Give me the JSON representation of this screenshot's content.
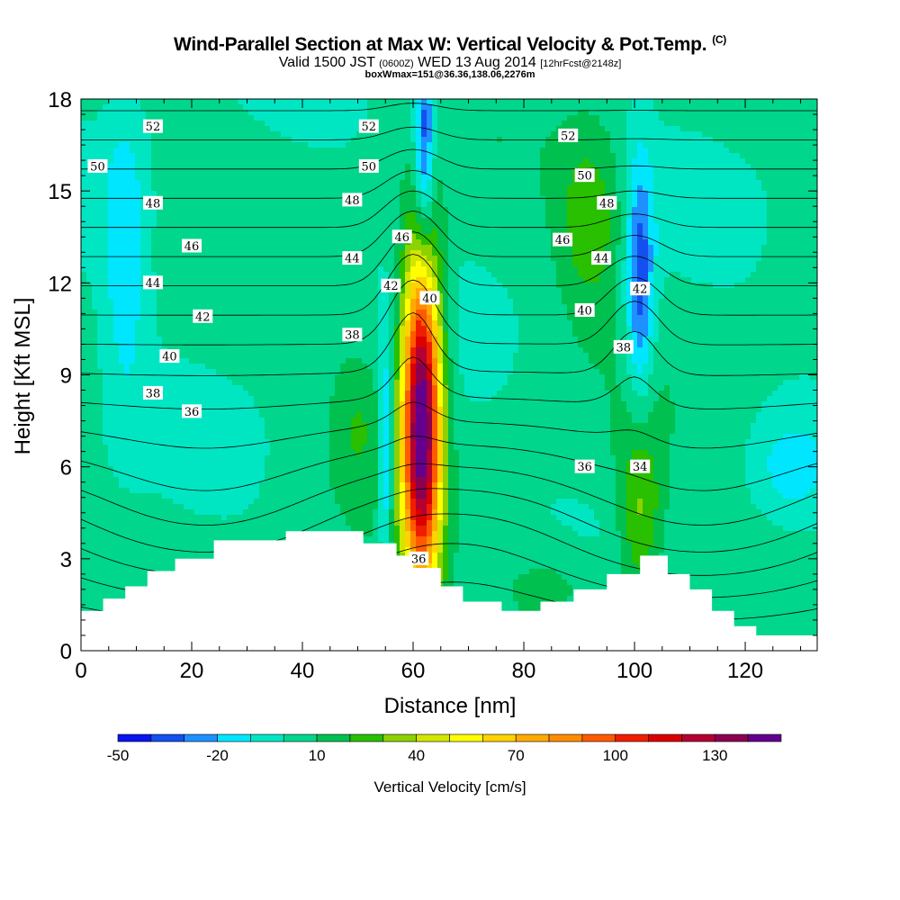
{
  "chart_data": {
    "type": "heatmap",
    "title": "Wind-Parallel Section at Max W: Vertical Velocity & Pot.Temp.",
    "title_unit": "(C)",
    "subtitle_main_a": "Valid 1500 JST",
    "subtitle_small_a": "(0600Z)",
    "subtitle_main_b": "WED 13 Aug 2014",
    "subtitle_small_b": "[12hrFcst@2148z]",
    "subtitle2": "boxWmax=151@36.36,138.06,2276m",
    "xlabel": "Distance [nm]",
    "ylabel": "Height [Kft MSL]",
    "xlim": [
      0,
      133
    ],
    "ylim": [
      0,
      18
    ],
    "x_ticks": [
      "0",
      "20",
      "40",
      "60",
      "80",
      "100",
      "120"
    ],
    "y_ticks": [
      "0",
      "3",
      "6",
      "9",
      "12",
      "15",
      "18"
    ],
    "colorbar": {
      "label": "Vertical Velocity [cm/s]",
      "tick_labels": [
        "-50",
        "-20",
        "10",
        "40",
        "70",
        "100",
        "130"
      ],
      "colors": [
        "#0a14f0",
        "#1450f0",
        "#1e90ff",
        "#00e6ff",
        "#00e6c3",
        "#00d68c",
        "#00c050",
        "#28c000",
        "#8cd200",
        "#d2e600",
        "#ffff00",
        "#ffd200",
        "#ffaa00",
        "#ff8c00",
        "#ff5a00",
        "#f01e00",
        "#dc0000",
        "#b40032",
        "#8c0050",
        "#64008c"
      ]
    },
    "contour_labels": [
      {
        "value": "52",
        "x": 13,
        "y": 17.1
      },
      {
        "value": "52",
        "x": 52,
        "y": 17.1
      },
      {
        "value": "52",
        "x": 88,
        "y": 16.8
      },
      {
        "value": "50",
        "x": 3,
        "y": 15.8
      },
      {
        "value": "50",
        "x": 52,
        "y": 15.8
      },
      {
        "value": "50",
        "x": 91,
        "y": 15.5
      },
      {
        "value": "48",
        "x": 13,
        "y": 14.6
      },
      {
        "value": "48",
        "x": 49,
        "y": 14.7
      },
      {
        "value": "48",
        "x": 95,
        "y": 14.6
      },
      {
        "value": "46",
        "x": 20,
        "y": 13.2
      },
      {
        "value": "46",
        "x": 58,
        "y": 13.5
      },
      {
        "value": "46",
        "x": 87,
        "y": 13.4
      },
      {
        "value": "44",
        "x": 13,
        "y": 12.0
      },
      {
        "value": "44",
        "x": 49,
        "y": 12.8
      },
      {
        "value": "44",
        "x": 94,
        "y": 12.8
      },
      {
        "value": "42",
        "x": 22,
        "y": 10.9
      },
      {
        "value": "42",
        "x": 56,
        "y": 11.9
      },
      {
        "value": "42",
        "x": 101,
        "y": 11.8
      },
      {
        "value": "40",
        "x": 16,
        "y": 9.6
      },
      {
        "value": "40",
        "x": 63,
        "y": 11.5
      },
      {
        "value": "40",
        "x": 91,
        "y": 11.1
      },
      {
        "value": "38",
        "x": 13,
        "y": 8.4
      },
      {
        "value": "38",
        "x": 49,
        "y": 10.3
      },
      {
        "value": "38",
        "x": 98,
        "y": 9.9
      },
      {
        "value": "36",
        "x": 20,
        "y": 7.8
      },
      {
        "value": "36",
        "x": 91,
        "y": 6.0
      },
      {
        "value": "36",
        "x": 61,
        "y": 3.0
      },
      {
        "value": "34",
        "x": 101,
        "y": 6.0
      }
    ],
    "w_blobs": [
      {
        "cx": 61.5,
        "cy": 7.5,
        "rx": 3.5,
        "ry": 5.5,
        "peak": 151
      },
      {
        "cx": 55,
        "cy": 6.5,
        "rx": 1.2,
        "ry": 3.5,
        "peak": -35
      },
      {
        "cx": 62,
        "cy": 16.5,
        "rx": 1.8,
        "ry": 3.5,
        "peak": -45
      },
      {
        "cx": 101,
        "cy": 12,
        "rx": 2.5,
        "ry": 4,
        "peak": -40
      },
      {
        "cx": 101,
        "cy": 4.5,
        "rx": 4,
        "ry": 3,
        "peak": 30
      },
      {
        "cx": 92,
        "cy": 14,
        "rx": 6,
        "ry": 3,
        "peak": 25
      },
      {
        "cx": 8,
        "cy": 13,
        "rx": 4,
        "ry": 5,
        "peak": -20
      },
      {
        "cx": 128,
        "cy": 6,
        "rx": 6,
        "ry": 1.5,
        "peak": -15
      },
      {
        "cx": 50,
        "cy": 7.5,
        "rx": 5,
        "ry": 2.5,
        "peak": 15
      },
      {
        "cx": 85,
        "cy": 2,
        "rx": 10,
        "ry": 1.5,
        "peak": 15
      }
    ],
    "terrain": [
      [
        0,
        1.3
      ],
      [
        4,
        1.3
      ],
      [
        4,
        1.7
      ],
      [
        8,
        1.7
      ],
      [
        8,
        2.1
      ],
      [
        12,
        2.1
      ],
      [
        12,
        2.6
      ],
      [
        17,
        2.6
      ],
      [
        17,
        3.0
      ],
      [
        24,
        3.0
      ],
      [
        24,
        3.6
      ],
      [
        37,
        3.6
      ],
      [
        37,
        3.9
      ],
      [
        51,
        3.9
      ],
      [
        51,
        3.5
      ],
      [
        57,
        3.5
      ],
      [
        57,
        3.1
      ],
      [
        60,
        3.1
      ],
      [
        60,
        2.7
      ],
      [
        65,
        2.7
      ],
      [
        65,
        2.1
      ],
      [
        69,
        2.1
      ],
      [
        69,
        1.6
      ],
      [
        76,
        1.6
      ],
      [
        76,
        1.3
      ],
      [
        83,
        1.3
      ],
      [
        83,
        1.6
      ],
      [
        89,
        1.6
      ],
      [
        89,
        2.0
      ],
      [
        95,
        2.0
      ],
      [
        95,
        2.5
      ],
      [
        101,
        2.5
      ],
      [
        101,
        3.1
      ],
      [
        106,
        3.1
      ],
      [
        106,
        2.5
      ],
      [
        110,
        2.5
      ],
      [
        110,
        2.0
      ],
      [
        114,
        2.0
      ],
      [
        114,
        1.3
      ],
      [
        118,
        1.3
      ],
      [
        118,
        0.8
      ],
      [
        122,
        0.8
      ],
      [
        122,
        0.5
      ],
      [
        133,
        0.5
      ]
    ]
  }
}
